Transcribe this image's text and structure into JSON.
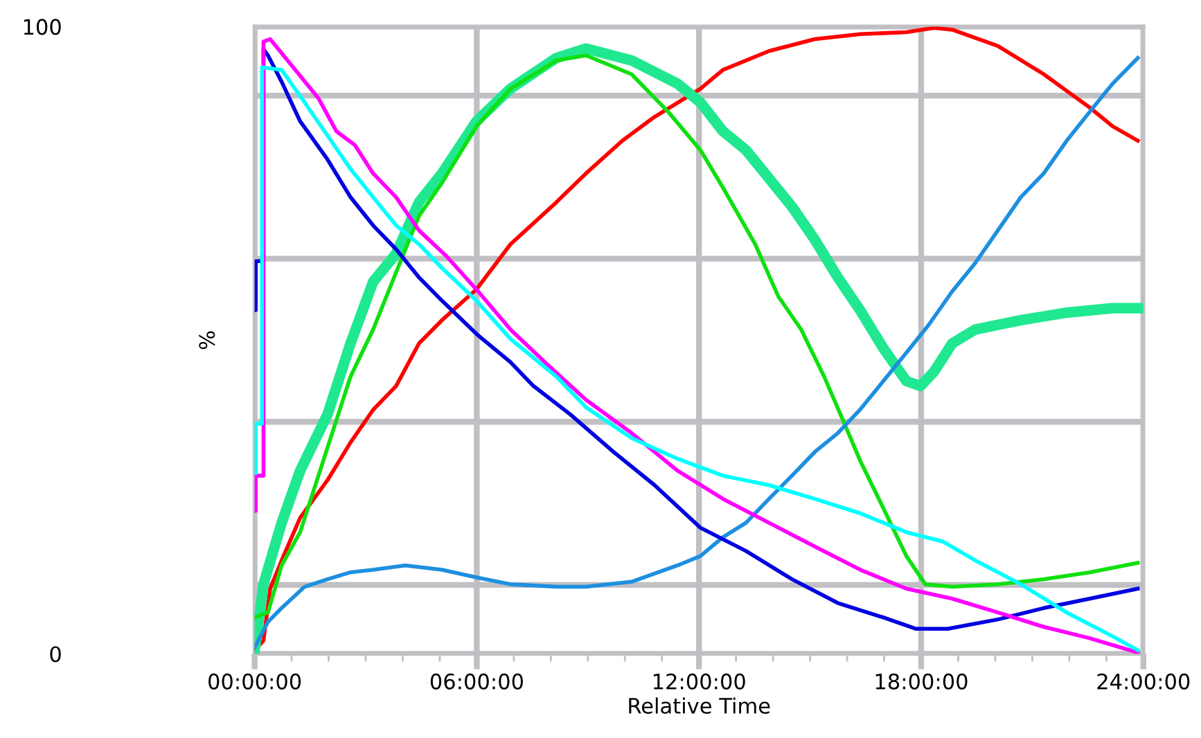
{
  "chart_data": {
    "type": "line",
    "xlabel": "Relative Time",
    "ylabel": "%",
    "xlim": [
      0,
      24
    ],
    "ylim": [
      0,
      100
    ],
    "xticks": [
      {
        "value": 0,
        "label": "00:00:00"
      },
      {
        "value": 1,
        "label": null
      },
      {
        "value": 2,
        "label": null
      },
      {
        "value": 3,
        "label": null
      },
      {
        "value": 4,
        "label": null
      },
      {
        "value": 5,
        "label": null
      },
      {
        "value": 6,
        "label": "06:00:00"
      },
      {
        "value": 7,
        "label": null
      },
      {
        "value": 8,
        "label": null
      },
      {
        "value": 9,
        "label": null
      },
      {
        "value": 10,
        "label": null
      },
      {
        "value": 11,
        "label": null
      },
      {
        "value": 12,
        "label": "12:00:00"
      },
      {
        "value": 13,
        "label": null
      },
      {
        "value": 14,
        "label": null
      },
      {
        "value": 15,
        "label": null
      },
      {
        "value": 16,
        "label": null
      },
      {
        "value": 17,
        "label": null
      },
      {
        "value": 18,
        "label": "18:00:00"
      },
      {
        "value": 19,
        "label": null
      },
      {
        "value": 20,
        "label": null
      },
      {
        "value": 21,
        "label": null
      },
      {
        "value": 22,
        "label": null
      },
      {
        "value": 23,
        "label": null
      },
      {
        "value": 24,
        "label": "24:00:00"
      }
    ],
    "yticks": [
      0,
      {
        "value": 11,
        "label": null
      },
      {
        "value": 37,
        "label": null
      },
      {
        "value": 63,
        "label": null
      },
      {
        "value": 89,
        "label": null
      },
      100
    ],
    "grid": true,
    "marker": "none",
    "line_style": "solid",
    "series": [
      {
        "color": "#ff0000",
        "x": [
          0,
          0.24,
          0.42,
          0.73,
          1.23,
          1.97,
          2.59,
          3.2,
          3.82,
          4.44,
          5.06,
          5.99,
          6.91,
          8.15,
          8.95,
          9.93,
          10.8,
          12.04,
          12.65,
          13.89,
          15.13,
          16.36,
          17.6,
          18.35,
          18.84,
          20.07,
          21.31,
          22.55,
          23.17,
          23.85
        ],
        "values": [
          0.6,
          2.1,
          10.4,
          14.9,
          21.7,
          27.7,
          33.7,
          38.9,
          42.7,
          49.5,
          53.2,
          58.1,
          65.3,
          72.0,
          76.6,
          81.8,
          85.6,
          90.1,
          93.1,
          96.1,
          98.0,
          98.8,
          99.1,
          99.8,
          99.5,
          96.9,
          92.4,
          87.1,
          84.1,
          81.8
        ]
      },
      {
        "color": "#20e890",
        "x": [
          0,
          0.24,
          0.73,
          1.23,
          1.97,
          2.59,
          3.2,
          3.82,
          4.44,
          5.06,
          5.99,
          6.91,
          8.15,
          8.95,
          10.18,
          11.42,
          12.04,
          12.65,
          13.27,
          13.89,
          14.51,
          15.13,
          15.75,
          16.36,
          16.98,
          17.6,
          17.98,
          18.35,
          18.84,
          19.46,
          20.69,
          21.93,
          23.17,
          24
        ],
        "values": [
          0.6,
          11.1,
          20.9,
          29.2,
          38.2,
          49.5,
          59.3,
          63.8,
          72.0,
          76.6,
          84.9,
          90.1,
          95.0,
          96.5,
          94.6,
          90.9,
          87.9,
          83.3,
          80.3,
          75.8,
          71.3,
          66.0,
          60.0,
          54.7,
          48.7,
          43.5,
          42.7,
          45.0,
          49.5,
          51.7,
          53.2,
          54.4,
          55.1,
          55.1
        ]
      },
      {
        "color": "#10e010",
        "x": [
          0,
          0.36,
          0.73,
          1.23,
          1.97,
          2.59,
          3.2,
          3.82,
          4.44,
          5.06,
          5.99,
          6.91,
          8.15,
          8.95,
          10.18,
          11.17,
          12.04,
          12.65,
          13.52,
          14.14,
          14.76,
          15.38,
          15.87,
          16.36,
          16.98,
          17.6,
          18.11,
          18.84,
          20.07,
          21.31,
          22.55,
          23.85
        ],
        "values": [
          5.8,
          6.6,
          14.1,
          19.4,
          32.9,
          44.2,
          51.7,
          60.8,
          69.8,
          75.1,
          84.1,
          90.1,
          94.6,
          95.4,
          92.4,
          86.4,
          80.3,
          74.3,
          65.3,
          57.0,
          51.7,
          44.2,
          37.5,
          30.7,
          23.2,
          15.6,
          11.1,
          10.7,
          11.1,
          11.9,
          13.0,
          14.5
        ]
      },
      {
        "color": "#1e8fe0",
        "x": [
          0,
          0.36,
          0.73,
          1.35,
          1.97,
          2.59,
          3.2,
          4.07,
          5.06,
          5.99,
          6.91,
          8.15,
          8.95,
          10.18,
          11.42,
          12.04,
          12.65,
          13.27,
          13.89,
          14.51,
          15.13,
          15.75,
          16.36,
          16.98,
          17.6,
          18.21,
          18.84,
          19.46,
          20.07,
          20.69,
          21.31,
          21.93,
          22.55,
          23.17,
          23.85
        ],
        "values": [
          1.0,
          5.1,
          7.3,
          10.7,
          11.9,
          13.0,
          13.4,
          14.1,
          13.4,
          12.2,
          11.1,
          10.7,
          10.7,
          11.5,
          14.1,
          15.6,
          18.6,
          20.9,
          24.7,
          28.4,
          32.2,
          35.2,
          39.0,
          43.5,
          48.0,
          52.5,
          57.8,
          62.3,
          67.5,
          72.8,
          76.6,
          81.8,
          86.4,
          90.9,
          95.0
        ]
      },
      {
        "color": "#0000e0",
        "x": [
          0,
          0.03,
          0.03,
          0.24,
          0.24,
          0.36,
          0.73,
          1.23,
          1.97,
          2.59,
          3.2,
          3.82,
          4.44,
          5.06,
          5.99,
          6.91,
          7.53,
          8.52,
          9.69,
          10.8,
          12.04,
          13.27,
          14.51,
          15.75,
          16.98,
          17.85,
          18.72,
          20.08,
          21.31,
          22.55,
          23.85
        ],
        "values": [
          54.8,
          54.8,
          62.6,
          62.6,
          96.4,
          95.4,
          91.2,
          84.9,
          78.8,
          72.8,
          68.3,
          64.5,
          60.0,
          56.3,
          51.0,
          46.5,
          42.7,
          38.2,
          32.2,
          26.9,
          20.1,
          16.4,
          11.9,
          8.1,
          5.8,
          4.0,
          4.0,
          5.5,
          7.3,
          8.8,
          10.4
        ]
      },
      {
        "color": "#ff00ff",
        "x": [
          0,
          0.03,
          0.03,
          0.24,
          0.24,
          0.42,
          1.1,
          1.72,
          2.21,
          2.71,
          3.2,
          3.82,
          4.44,
          5.18,
          5.99,
          6.91,
          7.91,
          8.95,
          10.18,
          11.42,
          12.65,
          13.89,
          15.13,
          16.36,
          17.6,
          18.84,
          20.07,
          21.31,
          22.55,
          23.85
        ],
        "values": [
          22.8,
          22.8,
          28.4,
          28.4,
          97.6,
          98.0,
          93.1,
          88.6,
          83.3,
          81.1,
          76.6,
          72.8,
          67.5,
          63.4,
          58.1,
          51.7,
          46.1,
          40.5,
          35.2,
          29.2,
          24.7,
          20.9,
          17.1,
          13.4,
          10.4,
          8.8,
          6.6,
          4.3,
          2.5,
          0.2
        ]
      },
      {
        "color": "#00ffff",
        "x": [
          0,
          0.03,
          0.03,
          0.2,
          0.2,
          0.73,
          1.35,
          1.97,
          2.59,
          3.2,
          3.82,
          4.44,
          5.06,
          5.99,
          6.91,
          8.15,
          8.95,
          10.18,
          11.42,
          12.65,
          13.89,
          15.13,
          16.36,
          17.6,
          18.59,
          19.46,
          20.69,
          21.93,
          23.17,
          23.85
        ],
        "values": [
          28.8,
          28.8,
          36.7,
          36.7,
          93.5,
          93.1,
          87.9,
          82.6,
          77.3,
          72.8,
          68.3,
          65.3,
          61.5,
          56.3,
          50.2,
          44.2,
          39.3,
          34.4,
          31.1,
          28.4,
          26.9,
          24.7,
          22.4,
          19.4,
          17.9,
          14.9,
          11.1,
          6.6,
          2.8,
          0.6
        ]
      }
    ]
  }
}
